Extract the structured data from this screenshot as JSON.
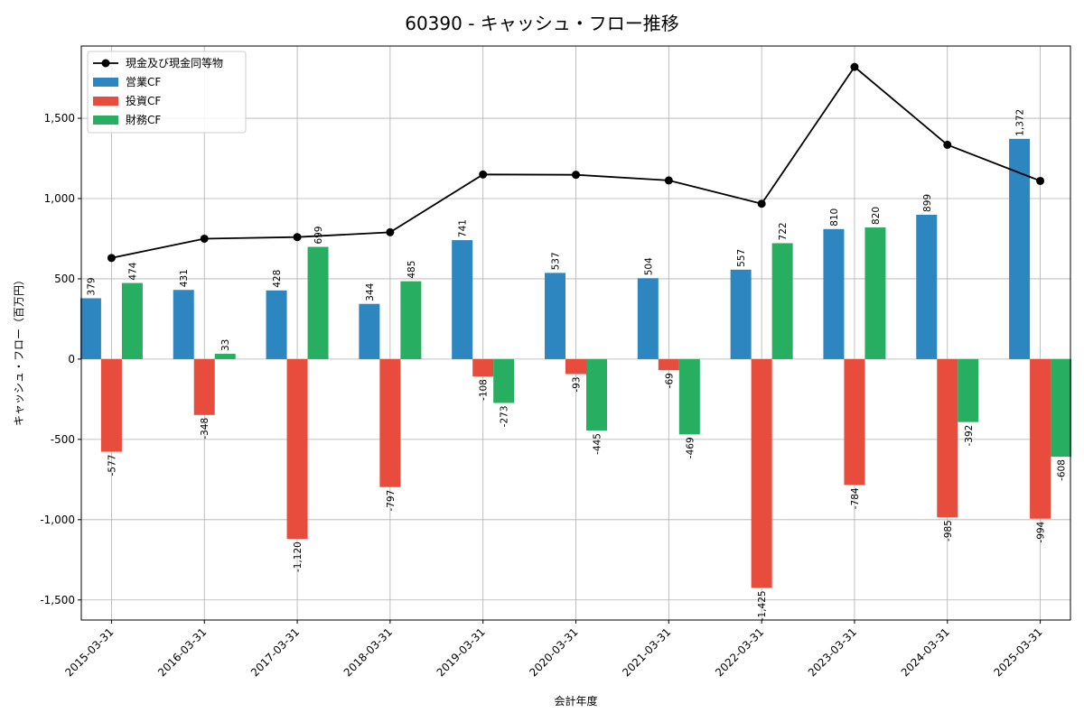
{
  "chart_data": {
    "type": "bar",
    "title": "60390 - キャッシュ・フロー推移",
    "xlabel": "会計年度",
    "ylabel": "キャッシュ・フロー（百万円）",
    "ylim": [
      -1625,
      1950
    ],
    "yticks": [
      -1500,
      -1000,
      -500,
      0,
      500,
      1000,
      1500
    ],
    "ytick_labels": [
      "-1,500",
      "-1,000",
      "-500",
      "0",
      "500",
      "1,000",
      "1,500"
    ],
    "grid": true,
    "legend_position": "top-left",
    "categories": [
      "2015-03-31",
      "2016-03-31",
      "2017-03-31",
      "2018-03-31",
      "2019-03-31",
      "2020-03-31",
      "2021-03-31",
      "2022-03-31",
      "2023-03-31",
      "2024-03-31",
      "2025-03-31"
    ],
    "series": [
      {
        "name": "営業CF",
        "type": "bar",
        "color": "#2e86c1",
        "values": [
          379,
          431,
          428,
          344,
          741,
          537,
          504,
          557,
          810,
          899,
          1372
        ],
        "labels": [
          "379",
          "431",
          "428",
          "344",
          "741",
          "537",
          "504",
          "557",
          "810",
          "899",
          "1,372"
        ]
      },
      {
        "name": "投資CF",
        "type": "bar",
        "color": "#e74c3c",
        "values": [
          -577,
          -348,
          -1120,
          -797,
          -108,
          -93,
          -69,
          -1425,
          -784,
          -985,
          -994
        ],
        "labels": [
          "-577",
          "-348",
          "-1,120",
          "-797",
          "-108",
          "-93",
          "-69",
          "-1,425",
          "-784",
          "-985",
          "-994"
        ]
      },
      {
        "name": "財務CF",
        "type": "bar",
        "color": "#27ae60",
        "values": [
          474,
          33,
          699,
          485,
          -273,
          -445,
          -469,
          722,
          820,
          -392,
          -608
        ],
        "labels": [
          "474",
          "33",
          "699",
          "485",
          "-273",
          "-445",
          "-469",
          "722",
          "820",
          "-392",
          "-608"
        ]
      },
      {
        "name": "現金及び現金同等物",
        "type": "line",
        "color": "#000000",
        "values": [
          630,
          750,
          760,
          790,
          1150,
          1148,
          1113,
          968,
          1820,
          1335,
          1110
        ]
      }
    ]
  }
}
